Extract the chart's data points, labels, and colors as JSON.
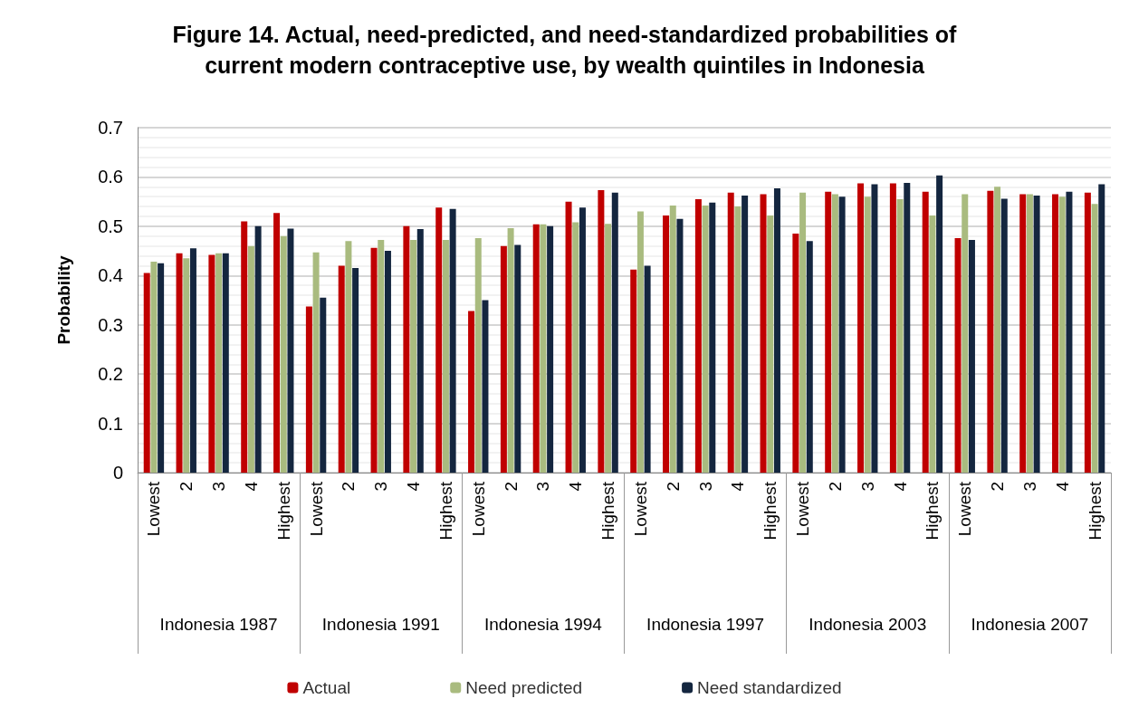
{
  "chart_data": {
    "type": "bar",
    "title": "Figure 14. Actual, need-predicted, and need-standardized probabilities of\ncurrent modern contraceptive use, by wealth quintiles in Indonesia",
    "ylabel": "Probability",
    "categories": [
      "Lowest",
      "2",
      "3",
      "4",
      "Highest",
      "Lowest",
      "2",
      "3",
      "4",
      "Highest",
      "Lowest",
      "2",
      "3",
      "4",
      "Highest",
      "Lowest",
      "2",
      "3",
      "4",
      "Highest",
      "Lowest",
      "2",
      "3",
      "4",
      "Highest",
      "Lowest",
      "2",
      "3",
      "4",
      "Highest"
    ],
    "annotations": [
      "Indonesia 1987",
      "Indonesia 1991",
      "Indonesia 1994",
      "Indonesia 1997",
      "Indonesia 2003",
      "Indonesia 2007"
    ],
    "series": [
      {
        "name": "Actual",
        "color": "#c00000",
        "values": [
          0.405,
          0.445,
          0.442,
          0.51,
          0.527,
          0.337,
          0.42,
          0.456,
          0.5,
          0.538,
          0.328,
          0.46,
          0.504,
          0.55,
          0.573,
          0.412,
          0.522,
          0.555,
          0.568,
          0.565,
          0.485,
          0.57,
          0.587,
          0.587,
          0.57,
          0.476,
          0.572,
          0.565,
          0.565,
          0.568
        ]
      },
      {
        "name": "Need predicted",
        "color": "#a9bb7f",
        "values": [
          0.428,
          0.435,
          0.445,
          0.46,
          0.48,
          0.447,
          0.47,
          0.472,
          0.472,
          0.472,
          0.476,
          0.496,
          0.504,
          0.508,
          0.505,
          0.53,
          0.542,
          0.542,
          0.54,
          0.522,
          0.568,
          0.565,
          0.56,
          0.555,
          0.522,
          0.565,
          0.58,
          0.565,
          0.56,
          0.545
        ]
      },
      {
        "name": "Need standardized",
        "color": "#14263f",
        "values": [
          0.425,
          0.455,
          0.445,
          0.5,
          0.495,
          0.355,
          0.415,
          0.45,
          0.494,
          0.535,
          0.35,
          0.462,
          0.5,
          0.538,
          0.568,
          0.42,
          0.515,
          0.548,
          0.562,
          0.577,
          0.47,
          0.56,
          0.585,
          0.588,
          0.603,
          0.472,
          0.556,
          0.562,
          0.57,
          0.585
        ]
      }
    ],
    "ylim": [
      0,
      0.7
    ],
    "yticks": [
      0,
      0.1,
      0.2,
      0.3,
      0.4,
      0.5,
      0.6,
      0.7
    ],
    "grid": "y",
    "legend": "bottom"
  }
}
